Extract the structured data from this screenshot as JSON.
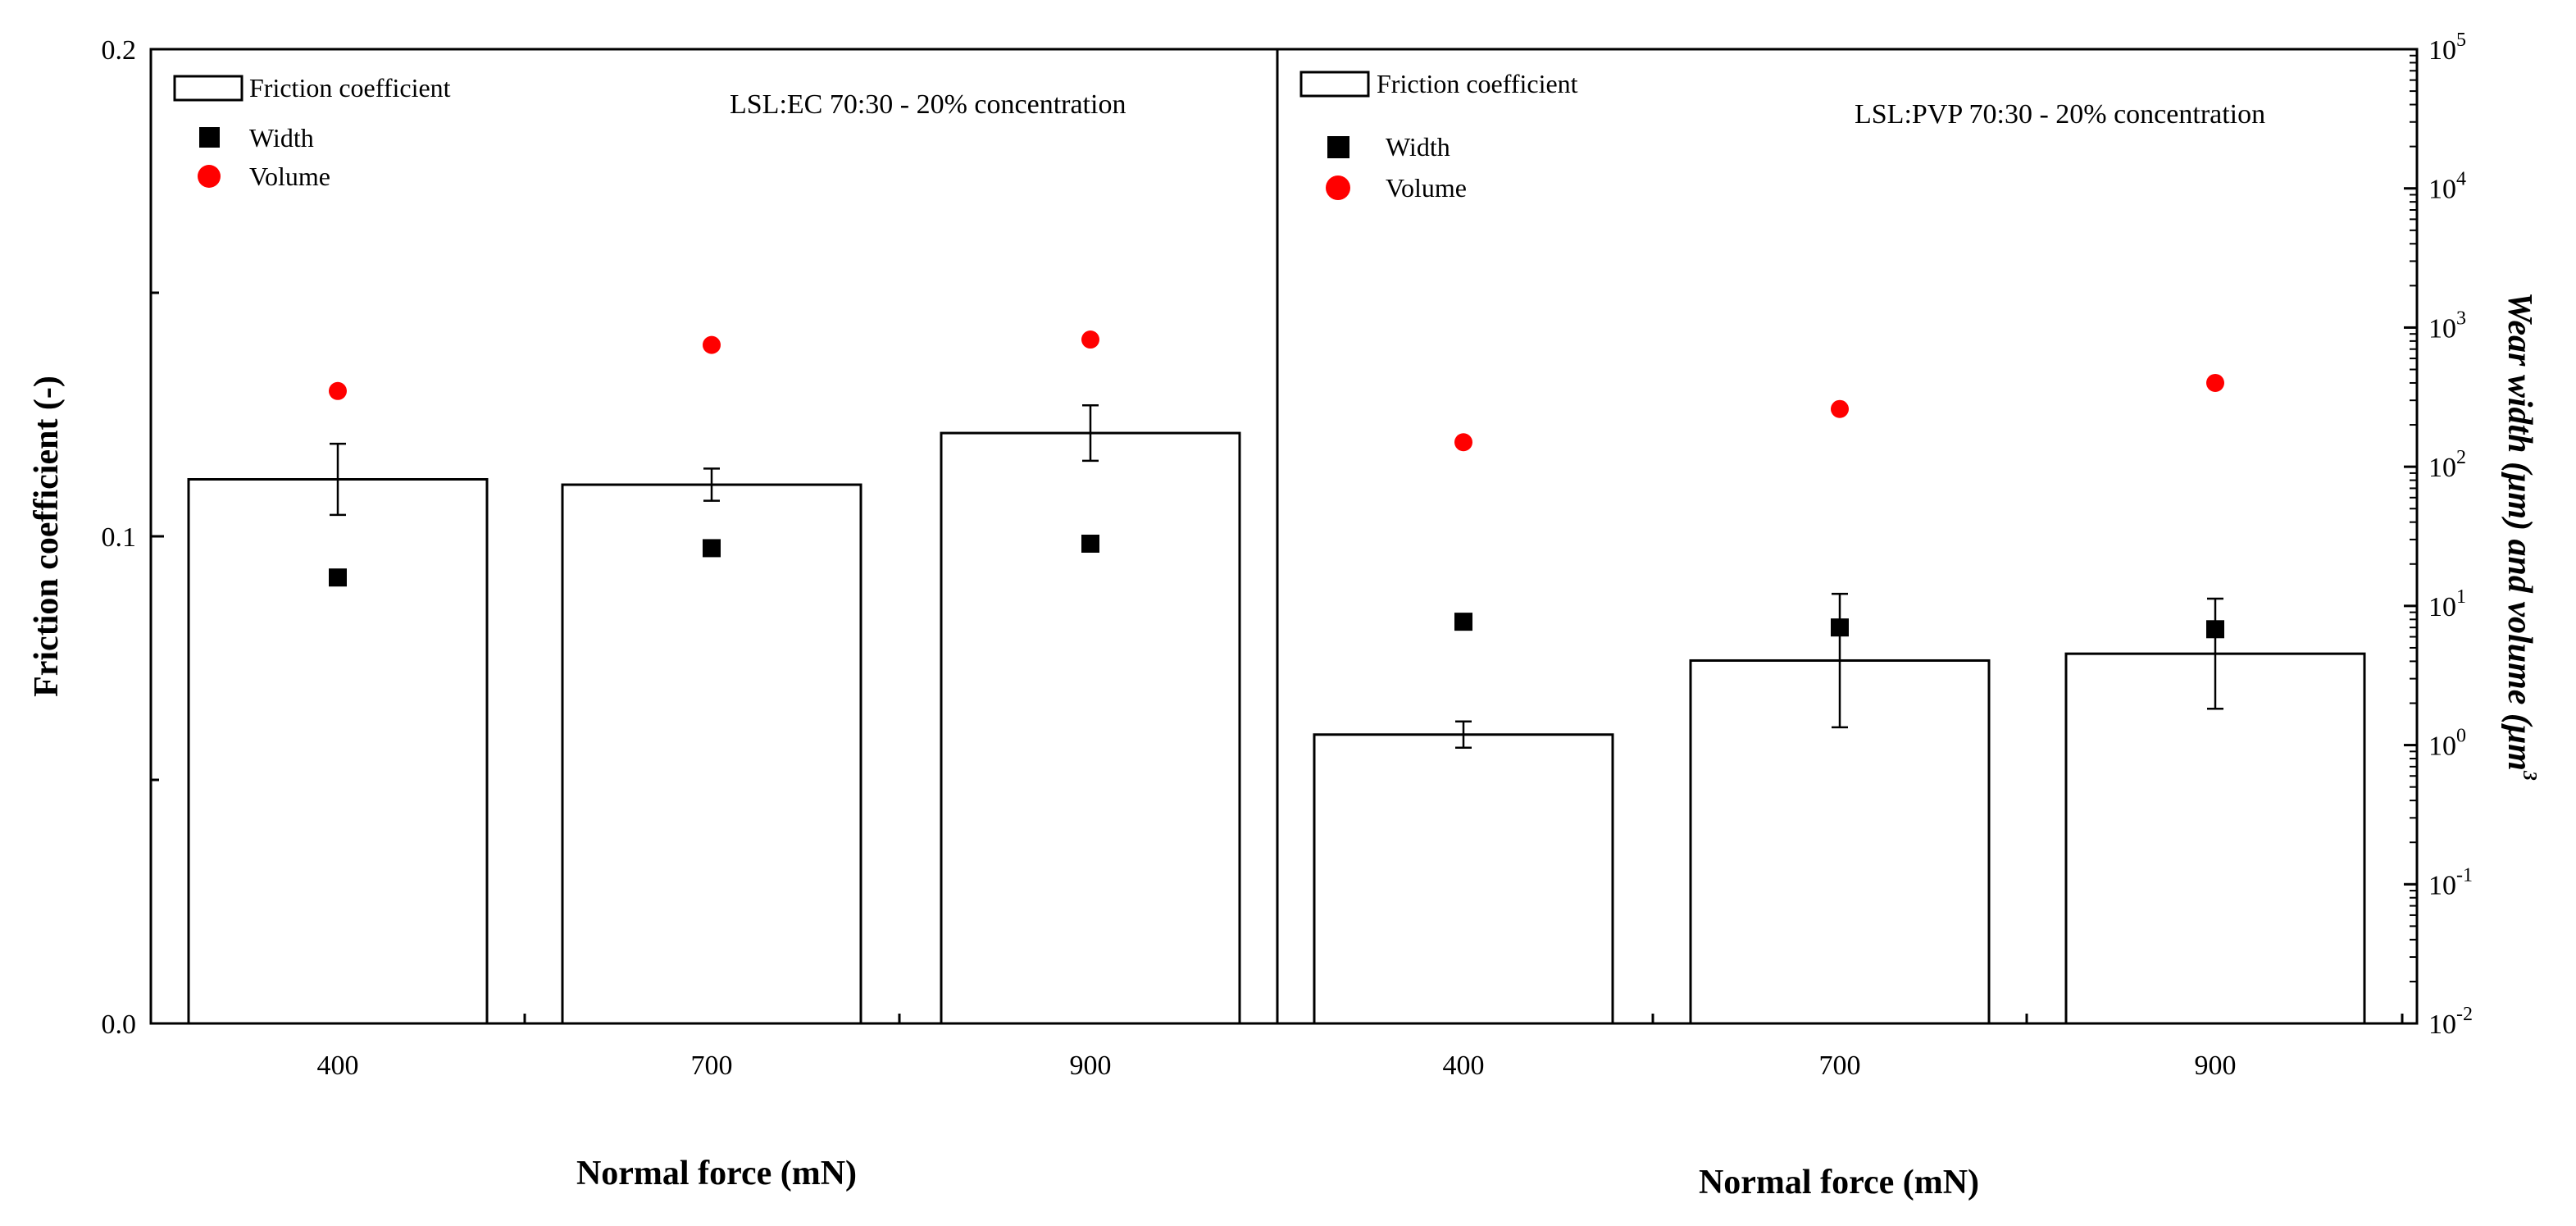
{
  "chart_data": [
    {
      "type": "bar",
      "panel": "left",
      "annotation": "LSL:EC 70:30 -  20% concentration",
      "categories": [
        "400",
        "700",
        "900"
      ],
      "friction_coefficient": [
        0.1117,
        0.1106,
        0.1212
      ],
      "friction_error": [
        0.0073,
        0.0033,
        0.0057
      ],
      "width_um": [
        16,
        26,
        28
      ],
      "volume_um3": [
        350,
        750,
        820
      ],
      "legend": {
        "bar": "Friction coefficient",
        "width": "Width",
        "volume": "Volume"
      }
    },
    {
      "type": "bar",
      "panel": "right",
      "annotation": "LSL:PVP 70:30 - 20% concentration",
      "categories": [
        "400",
        "700",
        "900"
      ],
      "friction_coefficient": [
        0.0593,
        0.0745,
        0.0759
      ],
      "friction_error": [
        0.0027,
        0.0137,
        0.0113
      ],
      "width_um": [
        7.7,
        7.0,
        6.8
      ],
      "volume_um3": [
        150,
        260,
        400
      ],
      "legend": {
        "bar": "Friction coefficient",
        "width": "Width",
        "volume": "Volume"
      }
    }
  ],
  "axes": {
    "left_y": {
      "title": "Friction coefficient (-)",
      "min": 0.0,
      "max": 0.2,
      "ticks": [
        "0.0",
        "0.1",
        "0.2"
      ]
    },
    "right_y": {
      "title_part1": "Wear width (",
      "title_part2": "μm",
      "title_part3": ") and volume (",
      "title_part4": "μm",
      "title_sup": "3",
      "min_exp": -2,
      "max_exp": 5,
      "tick_bases": [
        "10",
        "10",
        "10",
        "10",
        "10",
        "10",
        "10",
        "10"
      ],
      "tick_exps": [
        "-2",
        "-1",
        "0",
        "1",
        "2",
        "3",
        "4",
        "5"
      ]
    },
    "x_title_left": "Normal force (mN)",
    "x_title_right": "Normal force (mN)"
  },
  "colors": {
    "bar_fill": "#ffffff",
    "bar_stroke": "#000000",
    "width_marker": "#000000",
    "volume_marker": "#ff0000"
  }
}
